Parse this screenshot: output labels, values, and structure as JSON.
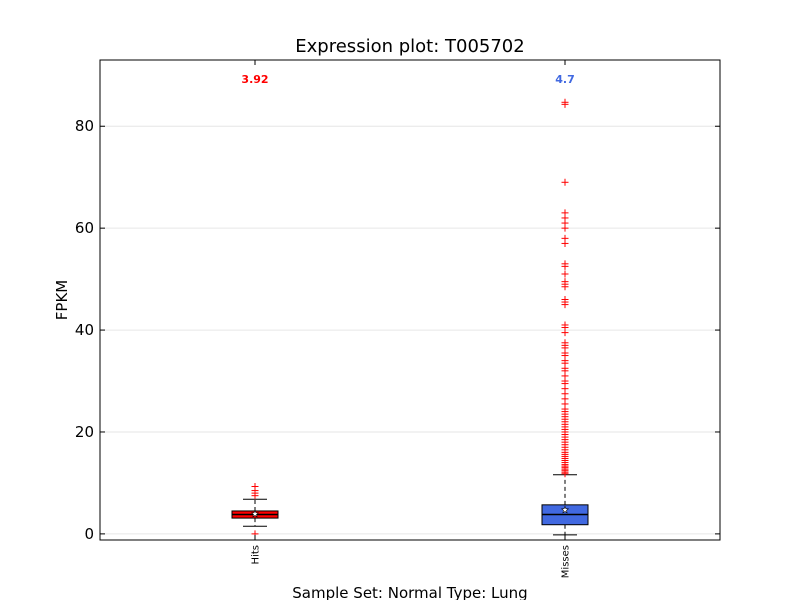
{
  "chart_data": {
    "type": "box",
    "title": "Expression plot: T005702",
    "xlabel": "Sample Set: Normal Type: Lung",
    "ylabel": "FPKM",
    "ylim": [
      -1.2,
      93
    ],
    "yticks": [
      0,
      20,
      40,
      60,
      80
    ],
    "yticks_labels": [
      "0",
      "20",
      "40",
      "60",
      "80"
    ],
    "grid": "horizontal",
    "categories": [
      "Hits",
      "Misses"
    ],
    "series": [
      {
        "category": "Hits",
        "color": "#ff0000",
        "whisker_low": 1.5,
        "q1": 3.1,
        "median": 3.8,
        "q3": 4.5,
        "whisker_high": 6.8,
        "mean": 3.92,
        "mean_label": "3.92",
        "outliers": [
          0,
          7.5,
          8.0,
          8.5,
          9.3
        ]
      },
      {
        "category": "Misses",
        "color": "#4169e1",
        "whisker_low": -0.2,
        "q1": 1.8,
        "median": 3.8,
        "q3": 5.7,
        "whisker_high": 11.6,
        "mean": 4.7,
        "mean_label": "4.7",
        "outliers": [
          11.8,
          12.1,
          12.4,
          12.7,
          13.0,
          13.3,
          13.6,
          14.0,
          14.4,
          14.8,
          15.2,
          15.6,
          16.0,
          16.5,
          17.0,
          17.5,
          18.0,
          18.5,
          19.0,
          19.5,
          20.0,
          20.5,
          21.0,
          21.5,
          22.0,
          22.5,
          23.0,
          23.5,
          24.0,
          24.5,
          25.5,
          26.5,
          27.5,
          28.5,
          29.5,
          30.0,
          31.0,
          32.0,
          32.5,
          33.5,
          34.0,
          35.0,
          35.5,
          36.5,
          37.0,
          37.5,
          39.5,
          40.5,
          41.0,
          45.0,
          45.5,
          46.0,
          48.5,
          49.0,
          49.5,
          51.0,
          52.5,
          53.0,
          57.0,
          58.0,
          60.0,
          61.0,
          62.0,
          63.0,
          69.0,
          84.3,
          84.7
        ]
      }
    ]
  }
}
